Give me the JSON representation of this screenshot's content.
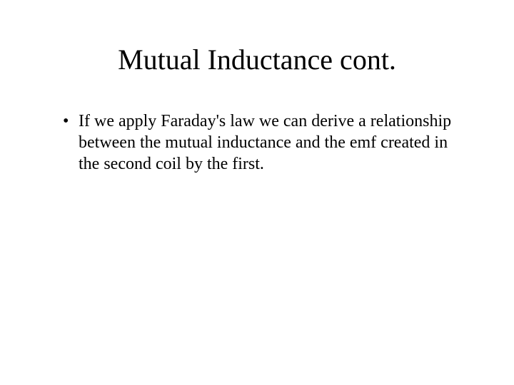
{
  "slide": {
    "title": "Mutual Inductance cont.",
    "bullets": [
      "If we apply Faraday's law we can derive a relationship between the mutual inductance and the emf created in the second coil by the first."
    ],
    "background_color": "#ffffff",
    "text_color": "#000000",
    "title_fontsize": 40,
    "body_fontsize": 24,
    "font_family": "Times New Roman"
  }
}
